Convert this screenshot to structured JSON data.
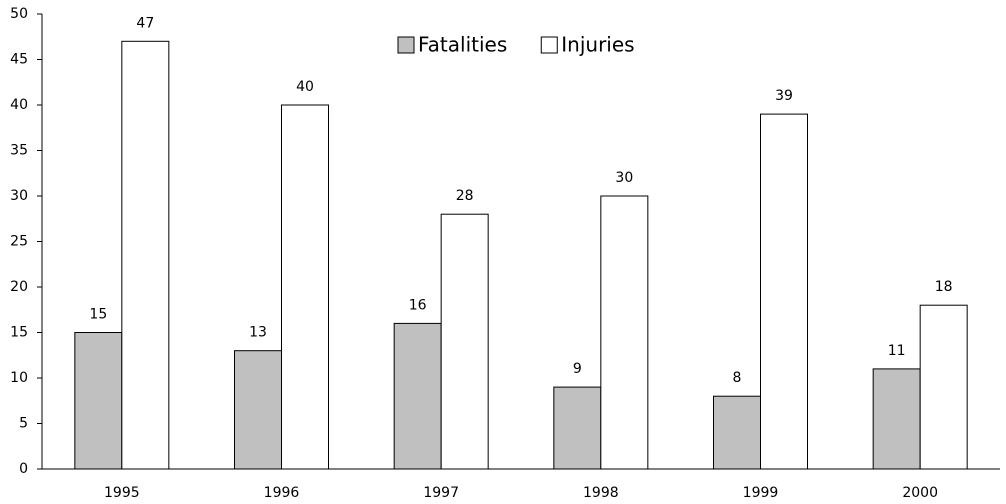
{
  "chart_data": {
    "type": "bar",
    "categories": [
      "1995",
      "1996",
      "1997",
      "1998",
      "1999",
      "2000"
    ],
    "series": [
      {
        "name": "Fatalities",
        "color": "#c0c0c0",
        "values": [
          15,
          13,
          16,
          9,
          8,
          11
        ]
      },
      {
        "name": "Injuries",
        "color": "#ffffff",
        "values": [
          47,
          40,
          28,
          30,
          39,
          18
        ]
      }
    ],
    "ylim": [
      0,
      50
    ],
    "yticks": [
      0,
      5,
      10,
      15,
      20,
      25,
      30,
      35,
      40,
      45,
      50
    ],
    "grid": false,
    "legend": "top"
  }
}
